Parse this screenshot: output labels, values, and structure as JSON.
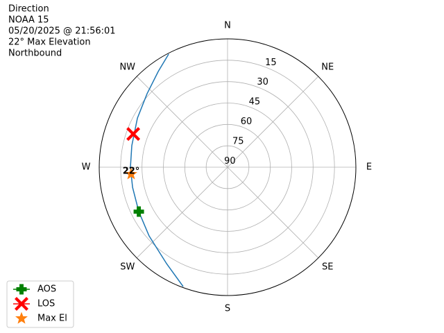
{
  "chart_data": {
    "type": "polar",
    "title": [
      "Direction",
      "NOAA 15",
      "05/20/2025 @ 21:56:01",
      "22° Max Elevation",
      "Northbound"
    ],
    "thetaticks": [
      {
        "value": 0,
        "label": "N"
      },
      {
        "value": 45,
        "label": "NE"
      },
      {
        "value": 90,
        "label": "E"
      },
      {
        "value": 135,
        "label": "SE"
      },
      {
        "value": 180,
        "label": "S"
      },
      {
        "value": 225,
        "label": "SW"
      },
      {
        "value": 270,
        "label": "W"
      },
      {
        "value": 315,
        "label": "NW"
      }
    ],
    "rlim": [
      90,
      0
    ],
    "rticks": [
      15,
      30,
      45,
      60,
      75,
      90
    ],
    "grid": true,
    "line": {
      "color": "#1f77b4",
      "theta": [
        200.4,
        212.3,
        228.8,
        243.4,
        258.0,
        270.0,
        282.7,
        298.6,
        312.4,
        324.1,
        332.5
      ],
      "r": [
        0.7,
        10.0,
        16.9,
        20.4,
        21.9,
        21.9,
        21.2,
        18.0,
        13.6,
        7.1,
        0.6
      ]
    },
    "markers": [
      {
        "name": "AOS",
        "color": "#008000",
        "marker": "plus",
        "theta": 243.4,
        "r": 20.4
      },
      {
        "name": "LOS",
        "color": "#ff0000",
        "marker": "x",
        "theta": 289.4,
        "r": 19.9
      },
      {
        "name": "Max El",
        "color": "#ff7f0e",
        "marker": "star",
        "theta": 265.9,
        "r": 22.2
      }
    ],
    "annotation": "22°",
    "legend": "lower left"
  }
}
